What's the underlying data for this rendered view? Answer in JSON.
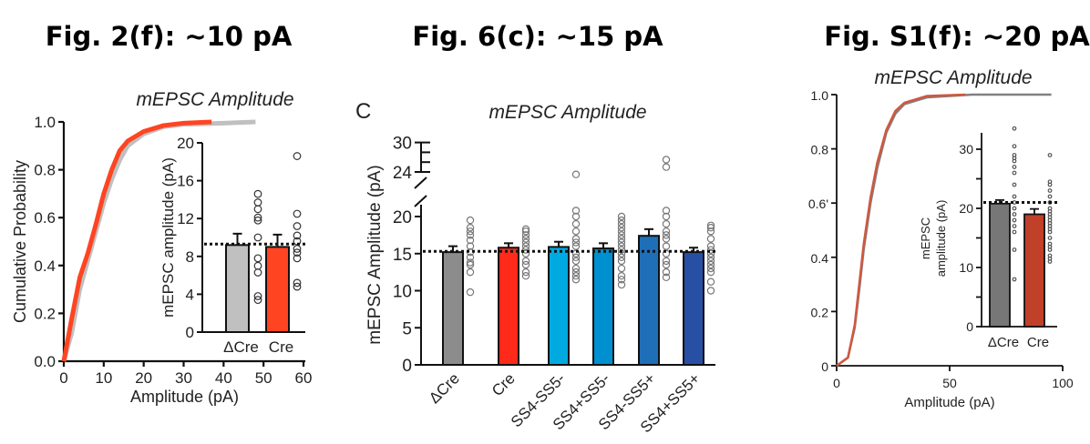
{
  "headings": [
    "Fig. 2(f): ~10 pA",
    "Fig. 6(c): ~15 pA",
    "Fig. S1(f): ~20 pA"
  ],
  "chart_data": [
    {
      "type": "line",
      "title": "mEPSC Amplitude",
      "xlabel": "Amplitude (pA)",
      "ylabel": "Cumulative Probability",
      "xlim": [
        0,
        60
      ],
      "ylim": [
        0,
        1.0
      ],
      "xticks": [
        "0",
        "10",
        "20",
        "30",
        "40",
        "50",
        "60"
      ],
      "yticks": [
        "0.0",
        "0.2",
        "0.4",
        "0.6",
        "0.8",
        "1.0"
      ],
      "series": [
        {
          "name": "ΔCre",
          "color": "#c0c0c0",
          "x": [
            0,
            2,
            4,
            6,
            8,
            10,
            12,
            14,
            16,
            20,
            25,
            30,
            40,
            48
          ],
          "y": [
            0,
            0.12,
            0.3,
            0.42,
            0.54,
            0.66,
            0.76,
            0.84,
            0.9,
            0.95,
            0.98,
            0.99,
            0.995,
            1.0
          ]
        },
        {
          "name": "Cre",
          "color": "#ff4422",
          "x": [
            0,
            2,
            4,
            6,
            8,
            10,
            12,
            14,
            16,
            20,
            25,
            30,
            37
          ],
          "y": [
            0,
            0.18,
            0.35,
            0.45,
            0.57,
            0.7,
            0.8,
            0.88,
            0.92,
            0.96,
            0.985,
            0.995,
            1.0
          ]
        }
      ],
      "inset": {
        "type": "bar",
        "ylabel": "mEPSC amplitude (pA)",
        "ylim": [
          0,
          20
        ],
        "yticks": [
          "0",
          "4",
          "8",
          "12",
          "16",
          "20"
        ],
        "categories": [
          "ΔCre",
          "Cre"
        ],
        "values": [
          9.2,
          9.0
        ],
        "error": [
          1.2,
          1.3
        ],
        "colors": [
          "#c0c0c0",
          "#ff4422"
        ],
        "reference_line": 9.3,
        "points": [
          [
            3.4,
            3.8,
            6.3,
            7.0,
            7.8,
            10.0,
            11.8,
            12.1,
            13.0,
            13.7,
            14.6
          ],
          [
            4.8,
            5.2,
            7.8,
            8.4,
            8.8,
            9.6,
            10.2,
            11.2,
            12.5,
            18.6
          ]
        ]
      }
    },
    {
      "type": "bar",
      "panel_label": "C",
      "title": "mEPSC Amplitude",
      "ylabel": "mEPSC Amplitude (pA)",
      "ylim": [
        0,
        30
      ],
      "axis_break": [
        22,
        23
      ],
      "yticks": [
        "0",
        "5",
        "10",
        "15",
        "20",
        "24",
        "30"
      ],
      "categories": [
        "ΔCre",
        "Cre",
        "SS4-SS5-",
        "SS4+SS5-",
        "SS4-SS5+",
        "SS4+SS5+"
      ],
      "values": [
        15.2,
        15.8,
        15.9,
        15.7,
        17.4,
        15.2
      ],
      "error": [
        0.8,
        0.6,
        0.7,
        0.7,
        0.9,
        0.6
      ],
      "colors": [
        "#8c8c8c",
        "#ff2a1a",
        "#00a9e0",
        "#0090cf",
        "#1f6fb8",
        "#2750a5"
      ],
      "reference_line": 15.3,
      "points": [
        [
          9.8,
          12.5,
          13.5,
          13.8,
          14.5,
          15.2,
          16,
          16.8,
          17.5,
          18,
          18.5,
          19.5
        ],
        [
          12,
          12.5,
          13.5,
          14,
          15,
          15.5,
          16,
          16.5,
          17,
          17.5,
          18,
          18.3
        ],
        [
          11.5,
          12,
          12.5,
          13,
          14,
          14.5,
          15,
          16,
          16.5,
          17,
          18,
          19,
          20,
          20.8,
          23.5
        ],
        [
          10.8,
          11.5,
          12,
          13,
          14,
          14.5,
          15,
          15.5,
          16,
          16.5,
          17,
          17.5,
          18,
          18.5,
          19,
          19.5,
          20
        ],
        [
          11.8,
          12.5,
          13.5,
          14,
          15,
          16,
          17,
          17.5,
          18,
          19,
          20,
          20.8,
          25,
          26.5
        ],
        [
          10,
          11.2,
          12.5,
          13,
          13.5,
          14,
          14.5,
          15,
          15.5,
          16,
          17,
          18,
          18.5,
          18.8
        ]
      ]
    },
    {
      "type": "line",
      "title": "mEPSC Amplitude",
      "xlabel": "Amplitude (pA)",
      "xlim": [
        0,
        100
      ],
      "ylim": [
        0,
        1.0
      ],
      "xticks": [
        "0",
        "50",
        "100"
      ],
      "yticks": [
        "0",
        "0.2",
        "0.4",
        "0.6'",
        "0.8",
        "1.0"
      ],
      "series": [
        {
          "name": "ΔCre",
          "color": "#808080",
          "x": [
            0,
            5,
            8,
            10,
            12,
            15,
            18,
            22,
            26,
            30,
            40,
            60,
            95
          ],
          "y": [
            0,
            0.03,
            0.14,
            0.28,
            0.43,
            0.6,
            0.73,
            0.86,
            0.93,
            0.965,
            0.99,
            1.0,
            1.0
          ]
        },
        {
          "name": "Cre",
          "color": "#d0583f",
          "x": [
            0,
            5,
            8,
            10,
            12,
            15,
            18,
            22,
            26,
            30,
            40,
            57
          ],
          "y": [
            0,
            0.03,
            0.15,
            0.3,
            0.45,
            0.62,
            0.75,
            0.87,
            0.94,
            0.97,
            0.995,
            1.0
          ]
        }
      ],
      "inset": {
        "type": "bar",
        "ylabel_lines": [
          "mEPSC",
          "amplitude (pA)"
        ],
        "ylim": [
          0,
          33
        ],
        "yticks": [
          "0",
          "10",
          "20",
          "30"
        ],
        "categories": [
          "ΔCre",
          "Cre"
        ],
        "values": [
          20.8,
          19.0
        ],
        "error": [
          0.6,
          0.9
        ],
        "colors": [
          "#777777",
          "#c0402a"
        ],
        "reference_line": 21.0,
        "points": [
          [
            8,
            13,
            16,
            17,
            18,
            19,
            20,
            21,
            22,
            24,
            26,
            27,
            28,
            28.5,
            29,
            30.5,
            33.5
          ],
          [
            11,
            11.5,
            12,
            13,
            13.5,
            14,
            15,
            16,
            16.5,
            17,
            17.5,
            18,
            18.5,
            19,
            19.5,
            20,
            21,
            22,
            23,
            24,
            24.5,
            29
          ]
        ]
      }
    }
  ]
}
